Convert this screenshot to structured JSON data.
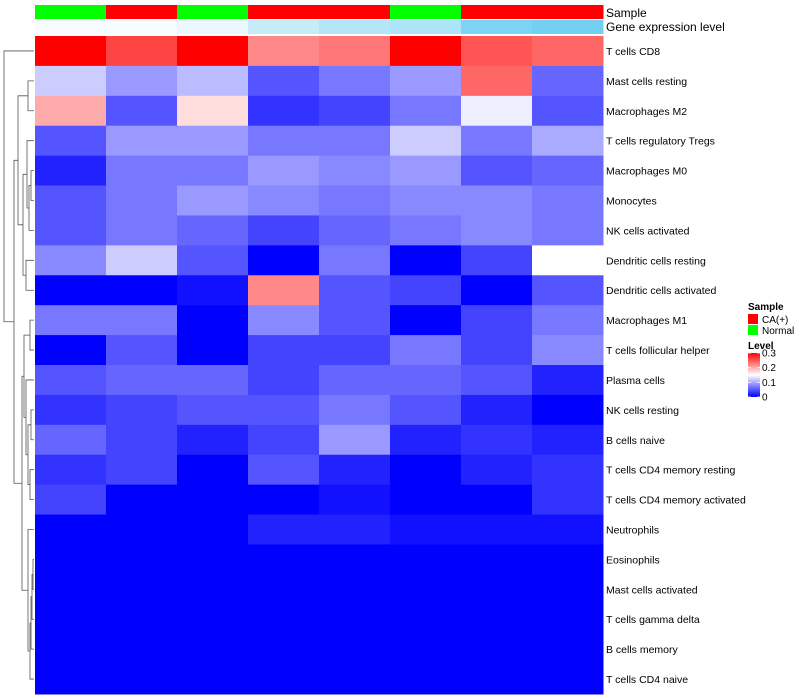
{
  "chart_data": {
    "type": "heatmap",
    "title": "",
    "annotation_labels": [
      "Sample",
      "Gene expression level"
    ],
    "sample_groups": [
      "Normal",
      "CA(+)",
      "Normal",
      "CA(+)",
      "CA(+)",
      "Normal",
      "CA(+)",
      "CA(+)"
    ],
    "gene_expression_level": [
      0.05,
      0.05,
      0.12,
      0.35,
      0.45,
      0.5,
      0.8,
      0.85
    ],
    "rows": [
      "T cells CD8",
      "Mast cells resting",
      "Macrophages M2",
      "T cells regulatory  Tregs",
      "Macrophages M0",
      "Monocytes",
      "NK cells activated",
      "Dendritic cells resting",
      "Dendritic cells activated",
      "Macrophages M1",
      "T cells follicular helper",
      "Plasma cells",
      "NK cells resting",
      "B cells naive",
      "T cells CD4 memory resting",
      "T cells CD4 memory activated",
      "Neutrophils",
      "Eosinophils",
      "Mast cells activated",
      "T cells gamma delta",
      "B cells memory",
      "T cells CD4 naive"
    ],
    "values": [
      [
        0.3,
        0.26,
        0.3,
        0.22,
        0.23,
        0.3,
        0.25,
        0.24
      ],
      [
        0.12,
        0.09,
        0.11,
        0.05,
        0.07,
        0.09,
        0.24,
        0.06
      ],
      [
        0.2,
        0.05,
        0.17,
        0.03,
        0.04,
        0.07,
        0.14,
        0.05
      ],
      [
        0.05,
        0.09,
        0.09,
        0.07,
        0.07,
        0.12,
        0.07,
        0.1
      ],
      [
        0.02,
        0.07,
        0.07,
        0.09,
        0.08,
        0.09,
        0.05,
        0.06
      ],
      [
        0.05,
        0.07,
        0.09,
        0.08,
        0.07,
        0.08,
        0.08,
        0.07
      ],
      [
        0.05,
        0.07,
        0.06,
        0.04,
        0.06,
        0.07,
        0.08,
        0.07
      ],
      [
        0.08,
        0.12,
        0.05,
        0.0,
        0.07,
        0.0,
        0.04,
        0.15
      ],
      [
        0.0,
        0.0,
        0.01,
        0.22,
        0.05,
        0.04,
        0.0,
        0.05
      ],
      [
        0.07,
        0.07,
        0.0,
        0.08,
        0.05,
        0.0,
        0.04,
        0.07
      ],
      [
        0.0,
        0.05,
        0.0,
        0.04,
        0.04,
        0.07,
        0.04,
        0.08
      ],
      [
        0.05,
        0.06,
        0.06,
        0.04,
        0.06,
        0.06,
        0.05,
        0.02
      ],
      [
        0.03,
        0.04,
        0.05,
        0.05,
        0.07,
        0.05,
        0.02,
        0.0
      ],
      [
        0.06,
        0.04,
        0.02,
        0.04,
        0.09,
        0.02,
        0.03,
        0.02
      ],
      [
        0.03,
        0.04,
        0.0,
        0.05,
        0.02,
        0.0,
        0.02,
        0.03
      ],
      [
        0.04,
        0.0,
        0.0,
        0.0,
        0.01,
        0.0,
        0.0,
        0.03
      ],
      [
        0.0,
        0.0,
        0.0,
        0.02,
        0.02,
        0.01,
        0.01,
        0.01
      ],
      [
        0.0,
        0.0,
        0.0,
        0.0,
        0.0,
        0.0,
        0.0,
        0.0
      ],
      [
        0.0,
        0.0,
        0.0,
        0.0,
        0.0,
        0.0,
        0.0,
        0.0
      ],
      [
        0.0,
        0.0,
        0.0,
        0.0,
        0.0,
        0.0,
        0.0,
        0.0
      ],
      [
        0.0,
        0.0,
        0.0,
        0.0,
        0.0,
        0.0,
        0.0,
        0.0
      ],
      [
        0.0,
        0.0,
        0.0,
        0.0,
        0.0,
        0.0,
        0.0,
        0.0
      ]
    ],
    "color_scale": {
      "min": 0,
      "max": 0.3,
      "stops": [
        "#0000ff",
        "#ffffff",
        "#ff0000"
      ],
      "legend_ticks": [
        {
          "value": 0.3,
          "label": "0.3"
        },
        {
          "value": 0.2,
          "label": "0.2"
        },
        {
          "value": 0.1,
          "label": "0.1"
        },
        {
          "value": 0,
          "label": "0"
        }
      ]
    },
    "legend": {
      "sample_title": "Sample",
      "sample_entries": [
        {
          "label": "CA(+)",
          "color": "#ff0000"
        },
        {
          "label": "Normal",
          "color": "#00ff00"
        }
      ],
      "level_title": "Level",
      "gene_level_colors": [
        "#ffffff",
        "#5bc8f0"
      ],
      "position": "right"
    },
    "row_dendrogram": true
  }
}
